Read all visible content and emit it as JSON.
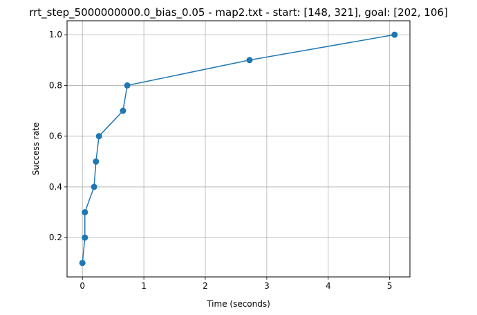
{
  "chart_data": {
    "type": "line",
    "title": "rrt_step_5000000000.0_bias_0.05 - map2.txt - start: [148, 321], goal: [202, 106]",
    "xlabel": "Time (seconds)",
    "ylabel": "Success rate",
    "xlim": [
      -0.25,
      5.33
    ],
    "ylim": [
      0.045,
      1.055
    ],
    "xticks": [
      0,
      1,
      2,
      3,
      4,
      5
    ],
    "xtick_labels": [
      "0",
      "1",
      "2",
      "3",
      "4",
      "5"
    ],
    "yticks": [
      0.2,
      0.4,
      0.6,
      0.8,
      1.0
    ],
    "ytick_labels": [
      "0.2",
      "0.4",
      "0.6",
      "0.8",
      "1.0"
    ],
    "grid": true,
    "marker": "circle",
    "series": [
      {
        "color": "#1f77b4",
        "x": [
          0.0,
          0.04,
          0.04,
          0.19,
          0.22,
          0.27,
          0.66,
          0.73,
          2.72,
          5.08
        ],
        "y": [
          0.1,
          0.2,
          0.3,
          0.4,
          0.5,
          0.6,
          0.7,
          0.8,
          0.9,
          1.0
        ]
      }
    ]
  }
}
